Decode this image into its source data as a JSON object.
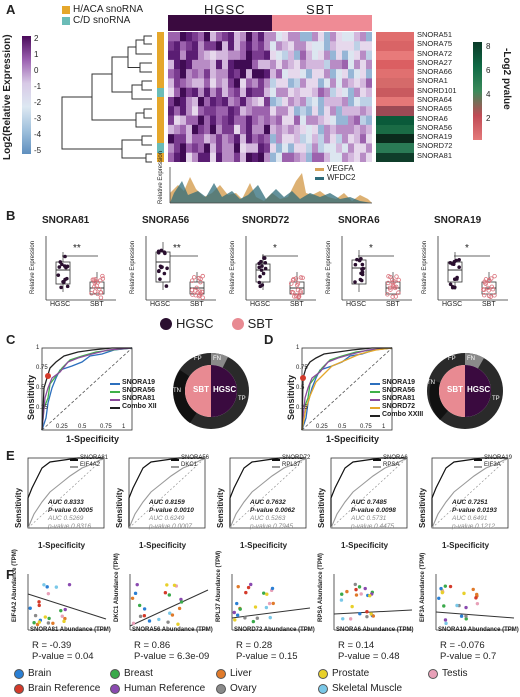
{
  "panels": {
    "A": "A",
    "B": "B",
    "C": "C",
    "D": "D",
    "E": "E",
    "F": "F"
  },
  "panelA": {
    "legend": [
      {
        "label": "H/ACA snoRNA",
        "color": "#e5a72b"
      },
      {
        "label": "C/D snoRNA",
        "color": "#6bbcb7"
      }
    ],
    "col_groups": [
      {
        "label": "HGSC",
        "color": "#3a0a3f"
      },
      {
        "label": "SBT",
        "color": "#ef8b95"
      }
    ],
    "colorbar_label": "Log2(Relative Expression)",
    "colorbar_ticks": [
      "2",
      "1",
      "0",
      "-1",
      "-2",
      "-3",
      "-4",
      "-5"
    ],
    "pval_label": "-Log2 pvalue",
    "pval_ticks": [
      "8",
      "6",
      "4",
      "2"
    ],
    "genes": [
      "SNORA51",
      "SNORA75",
      "SNORA72",
      "SNORA27",
      "SNORA66",
      "SNORA1",
      "SNORD101",
      "SNORA64",
      "SNORA65",
      "SNORA6",
      "SNORA56",
      "SNORA19",
      "SNORD72",
      "SNORA81"
    ],
    "gene_types": [
      "H",
      "H",
      "H",
      "H",
      "H",
      "H",
      "C",
      "H",
      "H",
      "H",
      "H",
      "H",
      "C",
      "H"
    ],
    "pval_colors": [
      "#e06d6d",
      "#d96466",
      "#e87a7a",
      "#db5f62",
      "#e07070",
      "#d56a6a",
      "#c95a5f",
      "#e57878",
      "#9c4a55",
      "#0a5a3a",
      "#1a6b45",
      "#0b2a1c",
      "#2a7a55",
      "#0f3d2a"
    ],
    "profile_ylabel": "Relative Expression",
    "profile_legend": [
      {
        "label": "VEGFA",
        "color": "#d7a35a"
      },
      {
        "label": "WFDC2",
        "color": "#2f6c7a"
      }
    ]
  },
  "panelB": {
    "plots": [
      {
        "title": "SNORA81",
        "sig": "**",
        "ylabel": "Relative Expression",
        "xcats": [
          "HGSC",
          "SBT"
        ]
      },
      {
        "title": "SNORA56",
        "sig": "**",
        "ylabel": "Relative Expression",
        "xcats": [
          "HGSC",
          "SBT"
        ]
      },
      {
        "title": "SNORD72",
        "sig": "*",
        "ylabel": "Relative Expression",
        "xcats": [
          "HGSC",
          "SBT"
        ]
      },
      {
        "title": "SNORA6",
        "sig": "*",
        "ylabel": "Relative Expression",
        "xcats": [
          "HGSC",
          "SBT"
        ]
      },
      {
        "title": "SNORA19",
        "sig": "*",
        "ylabel": "Relative Expression",
        "xcats": [
          "HGSC",
          "SBT"
        ]
      }
    ],
    "legend": [
      {
        "label": "HGSC",
        "color": "#2a0f2f"
      },
      {
        "label": "SBT",
        "color": "#e88a92"
      }
    ]
  },
  "panelC": {
    "xlabel": "1-Specificity",
    "ylabel": "Sensitivity",
    "ticks_x": [
      "0.25",
      "0.5",
      "0.75",
      "1"
    ],
    "ticks_y": [
      "0.25",
      "0.5",
      "0.75",
      "1"
    ],
    "legend": [
      {
        "label": "SNORA19",
        "color": "#2c6fbd"
      },
      {
        "label": "SNORA56",
        "color": "#3fb04a"
      },
      {
        "label": "SNORA81",
        "color": "#8a4a9c"
      },
      {
        "label": "Combo XII",
        "color": "#222222"
      }
    ],
    "donut": {
      "center": "SBT",
      "center2": "HGSC",
      "FP": "FP",
      "FN": "FN",
      "TN": "TN",
      "TP": "TP"
    }
  },
  "panelD": {
    "xlabel": "1-Specificity",
    "ylabel": "Sensitivity",
    "ticks_x": [
      "0.25",
      "0.5",
      "0.75",
      "1"
    ],
    "ticks_y": [
      "0.25",
      "0.5",
      "0.75",
      "1"
    ],
    "legend": [
      {
        "label": "SNORA19",
        "color": "#2c6fbd"
      },
      {
        "label": "SNORA56",
        "color": "#3fb04a"
      },
      {
        "label": "SNORA81",
        "color": "#8a4a9c"
      },
      {
        "label": "SNORD72",
        "color": "#e5a72b"
      },
      {
        "label": "Combo XXIII",
        "color": "#222222"
      }
    ],
    "donut": {
      "center": "SBT",
      "center2": "HGSC",
      "FP": "FP",
      "FN": "FN",
      "TN": "TN",
      "TP": "TP"
    }
  },
  "panelE": {
    "xlabel": "1-Specificity",
    "ylabel": "Sensitivity",
    "plots": [
      {
        "a": "SNORA81",
        "b": "EIF4A2",
        "auc1": "AUC 0.8333",
        "p1": "P-value 0.0005",
        "auc2": "AUC 0.5269",
        "p2": "p-value 0.8316"
      },
      {
        "a": "SNORA56",
        "b": "DKC1",
        "auc1": "AUC 0.8159",
        "p1": "P-value 0.0010",
        "auc2": "AUC 0.6249",
        "p2": "p-value 0.0007"
      },
      {
        "a": "SNORD72",
        "b": "RPL37",
        "auc1": "AUC 0.7632",
        "p1": "P-value 0.0062",
        "auc2": "AUC 0.5263",
        "p2": "p-value 0.7945"
      },
      {
        "a": "SNORA6",
        "b": "RPSA",
        "auc1": "AUC 0.7485",
        "p1": "P-value 0.0098",
        "auc2": "AUC 0.5731",
        "p2": "p-value 0.4475"
      },
      {
        "a": "SNORA19",
        "b": "EIF3A",
        "auc1": "AUC 0.7251",
        "p1": "P-value 0.0193",
        "auc2": "AUC 0.6491",
        "p2": "p-value 0.1212"
      }
    ]
  },
  "panelF": {
    "plots": [
      {
        "ylabel": "EIF4A2 Abundance (TPM)",
        "xlabel": "SNORA81 Abundance (TPM)",
        "R": "R = -0.39",
        "P": "P-value = 0.04"
      },
      {
        "ylabel": "DKC1 Abundance (TPM)",
        "xlabel": "SNORA56 Abundance (TPM)",
        "R": "R = 0.86",
        "P": "P-value = 6.3e-09"
      },
      {
        "ylabel": "RPL37 Abundance (TPM)",
        "xlabel": "SNORD72 Abundance (TPM)",
        "R": "R = 0.28",
        "P": "P-value = 0.15"
      },
      {
        "ylabel": "RPSA Abundance (TPM)",
        "xlabel": "SNORA6 Abundance (TPM)",
        "R": "R = 0.14",
        "P": "P-value = 0.48"
      },
      {
        "ylabel": "EIF3A Abundance (TPM)",
        "xlabel": "SNORA19 Abundance (TPM)",
        "R": "R = -0.076",
        "P": "P-value = 0.7"
      }
    ],
    "legend": [
      {
        "label": "Brain",
        "color": "#2a7fd4"
      },
      {
        "label": "Breast",
        "color": "#3aa94a"
      },
      {
        "label": "Liver",
        "color": "#e07a2a"
      },
      {
        "label": "Prostate",
        "color": "#e8d02a"
      },
      {
        "label": "Testis",
        "color": "#e8a0b8"
      },
      {
        "label": "Brain Reference",
        "color": "#d43a2a"
      },
      {
        "label": "Human Reference",
        "color": "#8a4ab0"
      },
      {
        "label": "Ovary",
        "color": "#8a8a8a"
      },
      {
        "label": "Skeletal Muscle",
        "color": "#7ac8e8"
      }
    ]
  }
}
